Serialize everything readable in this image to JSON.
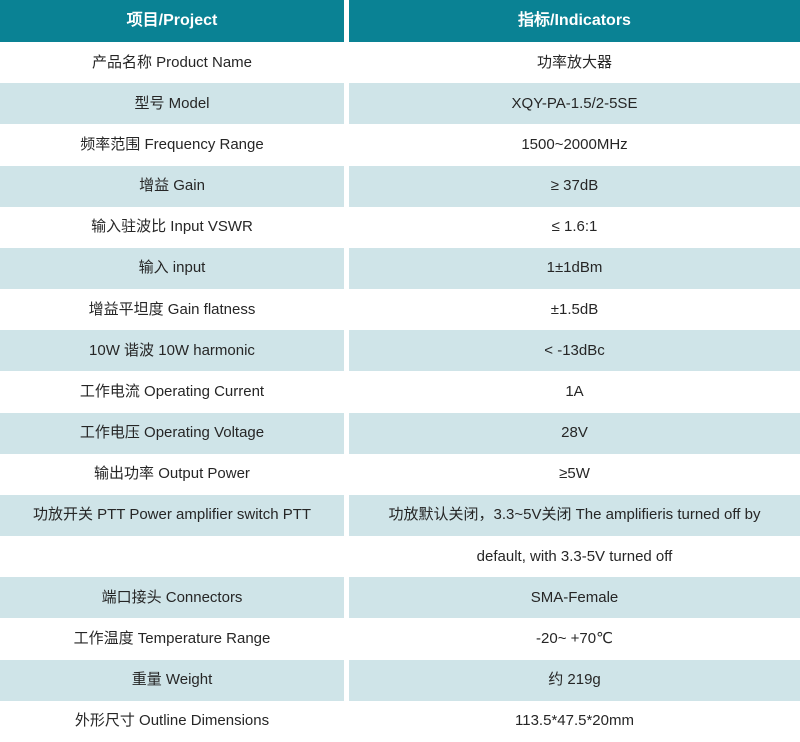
{
  "table": {
    "header": {
      "project": "项目/Project",
      "indicators": "指标/Indicators"
    },
    "rows": [
      {
        "project": "产品名称 Product Name",
        "indicator": "功率放大器"
      },
      {
        "project": "型号 Model",
        "indicator": "XQY-PA-1.5/2-5SE"
      },
      {
        "project": "频率范围 Frequency Range",
        "indicator": "1500~2000MHz"
      },
      {
        "project": "增益 Gain",
        "indicator": "≥ 37dB"
      },
      {
        "project": "输入驻波比 Input VSWR",
        "indicator": "≤ 1.6:1"
      },
      {
        "project": "输入 input",
        "indicator": "1±1dBm"
      },
      {
        "project": "增益平坦度 Gain flatness",
        "indicator": "±1.5dB"
      },
      {
        "project": "10W 谐波 10W harmonic",
        "indicator": "< -13dBc"
      },
      {
        "project": "工作电流 Operating Current",
        "indicator": "1A"
      },
      {
        "project": "工作电压 Operating Voltage",
        "indicator": "28V"
      },
      {
        "project": "输出功率 Output Power",
        "indicator": "≥5W"
      },
      {
        "project": "功放开关 PTT Power amplifier switch PTT",
        "indicator": "功放默认关闭，3.3~5V关闭 The amplifieris turned off by"
      },
      {
        "project": "",
        "indicator": "default, with 3.3-5V turned off"
      },
      {
        "project": "端口接头 Connectors",
        "indicator": "SMA-Female"
      },
      {
        "project": "工作温度 Temperature Range",
        "indicator": "-20~ +70℃"
      },
      {
        "project": "重量 Weight",
        "indicator": "约 219g"
      },
      {
        "project": "外形尺寸 Outline Dimensions",
        "indicator": "113.5*47.5*20mm"
      }
    ]
  },
  "colors": {
    "header_bg": "#0a8294",
    "stripe_bg": "#cfe4e8",
    "text": "#262626",
    "header_text": "#ffffff",
    "page_bg": "#ffffff"
  }
}
